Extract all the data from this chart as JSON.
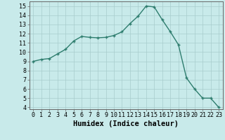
{
  "x": [
    0,
    1,
    2,
    3,
    4,
    5,
    6,
    7,
    8,
    9,
    10,
    11,
    12,
    13,
    14,
    15,
    16,
    17,
    18,
    19,
    20,
    21,
    22,
    23
  ],
  "y": [
    9.0,
    9.2,
    9.3,
    9.8,
    10.3,
    11.2,
    11.7,
    11.6,
    11.55,
    11.6,
    11.8,
    12.2,
    13.1,
    13.9,
    15.0,
    14.9,
    13.5,
    12.2,
    10.8,
    7.2,
    6.0,
    5.0,
    5.0,
    4.0
  ],
  "line_color": "#2e7d6e",
  "marker": "+",
  "marker_size": 3,
  "bg_color": "#c8eaea",
  "grid_color": "#a8cccc",
  "xlabel": "Humidex (Indice chaleur)",
  "ylim": [
    3.8,
    15.5
  ],
  "xlim": [
    -0.5,
    23.5
  ],
  "yticks": [
    4,
    5,
    6,
    7,
    8,
    9,
    10,
    11,
    12,
    13,
    14,
    15
  ],
  "xticks": [
    0,
    1,
    2,
    3,
    4,
    5,
    6,
    7,
    8,
    9,
    10,
    11,
    12,
    13,
    14,
    15,
    16,
    17,
    18,
    19,
    20,
    21,
    22,
    23
  ],
  "xtick_labels": [
    "0",
    "1",
    "2",
    "3",
    "4",
    "5",
    "6",
    "7",
    "8",
    "9",
    "10",
    "11",
    "12",
    "13",
    "14",
    "15",
    "16",
    "17",
    "18",
    "19",
    "20",
    "21",
    "22",
    "23"
  ],
  "xlabel_fontsize": 7.5,
  "tick_fontsize": 6,
  "line_width": 1.0
}
